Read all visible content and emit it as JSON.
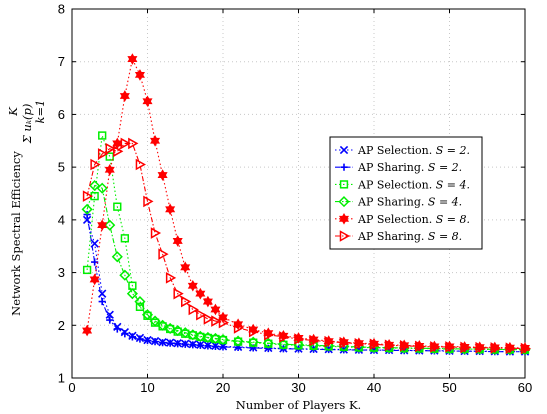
{
  "chart_data": {
    "type": "line",
    "xlabel": "Number of Players K.",
    "ylabel": "Network Spectral Efficiency",
    "ylabel_math": "Σ uₖ(p)",
    "ylabel_math_upper": "K",
    "ylabel_math_lower": "k=1",
    "xlim": [
      0,
      60
    ],
    "ylim": [
      1,
      8
    ],
    "xticks": [
      "0",
      "10",
      "20",
      "30",
      "40",
      "50",
      "60"
    ],
    "yticks": [
      "1",
      "2",
      "3",
      "4",
      "5",
      "6",
      "7",
      "8"
    ],
    "grid": true,
    "legend_position": "center-right",
    "series": [
      {
        "name": "AP Selection. S = 2.",
        "color": "#0000ff",
        "marker": "x",
        "linestyle": "dotted",
        "x": [
          2,
          3,
          4,
          5,
          6,
          7,
          8,
          9,
          10,
          11,
          12,
          13,
          14,
          15,
          16,
          17,
          18,
          19,
          20,
          22,
          24,
          26,
          28,
          30,
          32,
          34,
          36,
          38,
          40,
          42,
          44,
          46,
          48,
          50,
          52,
          54,
          56,
          58,
          60
        ],
        "y": [
          4.0,
          3.55,
          2.6,
          2.2,
          1.97,
          1.87,
          1.8,
          1.76,
          1.72,
          1.7,
          1.68,
          1.67,
          1.66,
          1.65,
          1.64,
          1.63,
          1.62,
          1.61,
          1.6,
          1.59,
          1.58,
          1.57,
          1.56,
          1.555,
          1.55,
          1.545,
          1.54,
          1.535,
          1.53,
          1.53,
          1.525,
          1.52,
          1.52,
          1.515,
          1.51,
          1.51,
          1.505,
          1.5,
          1.5
        ]
      },
      {
        "name": "AP Sharing. S = 2.",
        "color": "#0000ff",
        "marker": "plus",
        "linestyle": "dashdot",
        "x": [
          2,
          3,
          4,
          5,
          6,
          7,
          8,
          9,
          10,
          11,
          12,
          13,
          14,
          15,
          16,
          17,
          18,
          19,
          20,
          22,
          24,
          26,
          28,
          30,
          32,
          34,
          36,
          38,
          40,
          42,
          44,
          46,
          48,
          50,
          52,
          54,
          56,
          58,
          60
        ],
        "y": [
          4.1,
          3.2,
          2.45,
          2.1,
          1.93,
          1.84,
          1.78,
          1.74,
          1.71,
          1.69,
          1.67,
          1.66,
          1.65,
          1.64,
          1.63,
          1.62,
          1.61,
          1.6,
          1.59,
          1.58,
          1.57,
          1.56,
          1.555,
          1.55,
          1.545,
          1.54,
          1.535,
          1.53,
          1.53,
          1.525,
          1.52,
          1.52,
          1.515,
          1.51,
          1.51,
          1.505,
          1.5,
          1.5,
          1.5
        ]
      },
      {
        "name": "AP Selection. S = 4.",
        "color": "#00ee00",
        "marker": "square",
        "linestyle": "dotted",
        "x": [
          2,
          3,
          4,
          5,
          6,
          7,
          8,
          9,
          10,
          11,
          12,
          13,
          14,
          15,
          16,
          17,
          18,
          19,
          20,
          22,
          24,
          26,
          28,
          30,
          32,
          34,
          36,
          38,
          40,
          42,
          44,
          46,
          48,
          50,
          52,
          54,
          56,
          58,
          60
        ],
        "y": [
          3.05,
          4.45,
          5.6,
          5.2,
          4.25,
          3.65,
          2.75,
          2.35,
          2.18,
          2.05,
          1.98,
          1.93,
          1.88,
          1.84,
          1.81,
          1.78,
          1.76,
          1.74,
          1.72,
          1.69,
          1.67,
          1.65,
          1.63,
          1.62,
          1.61,
          1.6,
          1.59,
          1.58,
          1.575,
          1.57,
          1.565,
          1.56,
          1.555,
          1.55,
          1.55,
          1.545,
          1.54,
          1.54,
          1.535
        ]
      },
      {
        "name": "AP Sharing. S = 4.",
        "color": "#00ee00",
        "marker": "diamond",
        "linestyle": "dashdot",
        "x": [
          2,
          3,
          4,
          5,
          6,
          7,
          8,
          9,
          10,
          11,
          12,
          13,
          14,
          15,
          16,
          17,
          18,
          19,
          20,
          22,
          24,
          26,
          28,
          30,
          32,
          34,
          36,
          38,
          40,
          42,
          44,
          46,
          48,
          50,
          52,
          54,
          56,
          58,
          60
        ],
        "y": [
          4.2,
          4.65,
          4.6,
          3.9,
          3.3,
          2.95,
          2.6,
          2.45,
          2.2,
          2.08,
          2.0,
          1.94,
          1.9,
          1.86,
          1.82,
          1.79,
          1.77,
          1.75,
          1.73,
          1.7,
          1.68,
          1.66,
          1.64,
          1.63,
          1.62,
          1.61,
          1.6,
          1.59,
          1.58,
          1.575,
          1.57,
          1.565,
          1.56,
          1.555,
          1.55,
          1.55,
          1.545,
          1.54,
          1.54
        ]
      },
      {
        "name": "AP Selection. S = 8.",
        "color": "#ff0000",
        "marker": "hexagram",
        "linestyle": "dotted",
        "x": [
          2,
          3,
          4,
          5,
          6,
          7,
          8,
          9,
          10,
          11,
          12,
          13,
          14,
          15,
          16,
          17,
          18,
          19,
          20,
          22,
          24,
          26,
          28,
          30,
          32,
          34,
          36,
          38,
          40,
          42,
          44,
          46,
          48,
          50,
          52,
          54,
          56,
          58,
          60
        ],
        "y": [
          1.9,
          2.87,
          3.9,
          4.95,
          5.45,
          6.35,
          7.05,
          6.75,
          6.25,
          5.5,
          4.85,
          4.2,
          3.6,
          3.1,
          2.75,
          2.6,
          2.45,
          2.3,
          2.15,
          2.02,
          1.92,
          1.85,
          1.8,
          1.76,
          1.73,
          1.7,
          1.68,
          1.66,
          1.65,
          1.63,
          1.62,
          1.61,
          1.6,
          1.6,
          1.59,
          1.585,
          1.58,
          1.575,
          1.57
        ]
      },
      {
        "name": "AP Sharing. S = 8.",
        "color": "#ff0000",
        "marker": "triangle-right",
        "linestyle": "dashdot",
        "x": [
          2,
          3,
          4,
          5,
          6,
          7,
          8,
          9,
          10,
          11,
          12,
          13,
          14,
          15,
          16,
          17,
          18,
          19,
          20,
          22,
          24,
          26,
          28,
          30,
          32,
          34,
          36,
          38,
          40,
          42,
          44,
          46,
          48,
          50,
          52,
          54,
          56,
          58,
          60
        ],
        "y": [
          4.45,
          5.05,
          5.25,
          5.35,
          5.3,
          5.45,
          5.45,
          5.05,
          4.35,
          3.75,
          3.35,
          2.9,
          2.6,
          2.45,
          2.3,
          2.2,
          2.12,
          2.08,
          2.05,
          1.95,
          1.88,
          1.82,
          1.78,
          1.74,
          1.71,
          1.69,
          1.67,
          1.65,
          1.64,
          1.62,
          1.61,
          1.6,
          1.59,
          1.59,
          1.58,
          1.575,
          1.57,
          1.565,
          1.56
        ]
      }
    ]
  },
  "legend": {
    "entries": [
      {
        "text": "AP Selection. ",
        "math": "S = 2."
      },
      {
        "text": "AP Sharing. ",
        "math": "S = 2."
      },
      {
        "text": "AP Selection. ",
        "math": "S = 4."
      },
      {
        "text": "AP Sharing. ",
        "math": "S = 4."
      },
      {
        "text": "AP Selection. ",
        "math": "S = 8."
      },
      {
        "text": "AP Sharing. ",
        "math": "S = 8."
      }
    ]
  }
}
